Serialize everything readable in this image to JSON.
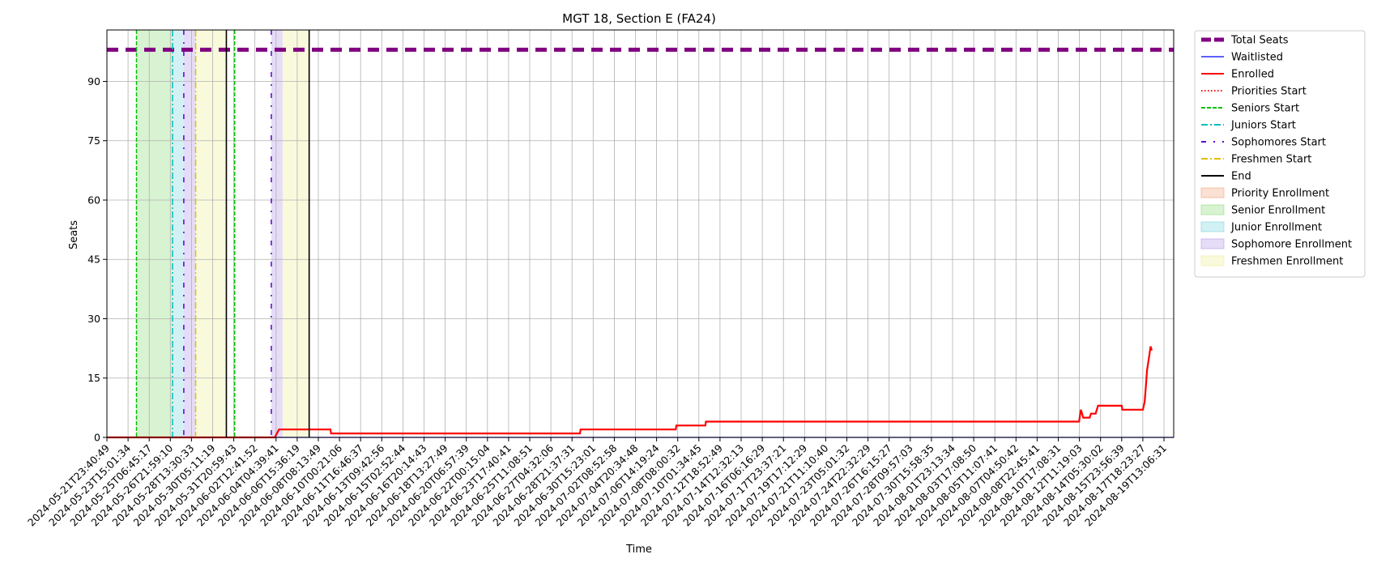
{
  "chart_data": {
    "type": "line",
    "title": "MGT 18, Section E (FA24)",
    "xlabel": "Time",
    "ylabel": "Seats",
    "ylim": [
      0,
      103
    ],
    "yticks": [
      0,
      15,
      30,
      45,
      60,
      75,
      90
    ],
    "grid": true,
    "legend_placement": "outside-right-top",
    "x_range_days": [
      0,
      90.2
    ],
    "x_ticks": [
      "2024-05-21T23:40:49",
      "2024-05-23T15:01:34",
      "2024-05-25T06:45:17",
      "2024-05-26T21:59:10",
      "2024-05-28T13:30:33",
      "2024-05-30T05:11:19",
      "2024-05-31T20:59:43",
      "2024-06-02T12:41:52",
      "2024-06-04T04:39:41",
      "2024-06-06T15:36:19",
      "2024-06-08T08:13:49",
      "2024-06-10T00:21:06",
      "2024-06-11T16:46:37",
      "2024-06-13T09:42:56",
      "2024-06-15T02:52:44",
      "2024-06-16T20:14:43",
      "2024-06-18T13:27:49",
      "2024-06-20T06:57:39",
      "2024-06-22T00:15:04",
      "2024-06-23T17:40:41",
      "2024-06-25T11:08:51",
      "2024-06-27T04:32:06",
      "2024-06-28T21:37:31",
      "2024-06-30T15:23:01",
      "2024-07-02T08:52:58",
      "2024-07-04T20:34:48",
      "2024-07-06T14:19:24",
      "2024-07-08T08:00:32",
      "2024-07-10T01:34:45",
      "2024-07-12T18:52:49",
      "2024-07-14T12:32:13",
      "2024-07-16T06:16:29",
      "2024-07-17T23:37:21",
      "2024-07-19T17:12:29",
      "2024-07-21T11:10:40",
      "2024-07-23T05:01:32",
      "2024-07-24T22:32:29",
      "2024-07-26T16:15:27",
      "2024-07-28T09:57:03",
      "2024-07-30T15:58:35",
      "2024-08-01T23:13:34",
      "2024-08-03T17:08:50",
      "2024-08-05T11:07:41",
      "2024-08-07T04:50:42",
      "2024-08-08T22:45:41",
      "2024-08-10T17:08:31",
      "2024-08-12T11:19:03",
      "2024-08-14T05:30:02",
      "2024-08-15T23:56:39",
      "2024-08-17T18:23:27",
      "2024-08-19T13:06:31"
    ],
    "series": [
      {
        "name": "Total Seats",
        "color": "#800080",
        "style": "dashed-thick",
        "points": [
          [
            0,
            98
          ],
          [
            90.2,
            98
          ]
        ]
      },
      {
        "name": "Waitlisted",
        "color": "#0000ff",
        "style": "solid-thin",
        "points": [
          [
            0,
            0
          ],
          [
            90.2,
            0
          ]
        ]
      },
      {
        "name": "Enrolled",
        "color": "#ff0000",
        "style": "solid",
        "points": [
          [
            0,
            0
          ],
          [
            14.2,
            0
          ],
          [
            14.55,
            2
          ],
          [
            18.9,
            2
          ],
          [
            18.95,
            1
          ],
          [
            40.0,
            1
          ],
          [
            40.05,
            2
          ],
          [
            48.1,
            2
          ],
          [
            48.15,
            3
          ],
          [
            50.6,
            3
          ],
          [
            50.65,
            4
          ],
          [
            82.2,
            4
          ],
          [
            82.35,
            7
          ],
          [
            82.55,
            5
          ],
          [
            83.1,
            5
          ],
          [
            83.2,
            6
          ],
          [
            83.6,
            6
          ],
          [
            83.8,
            8
          ],
          [
            85.8,
            8
          ],
          [
            85.85,
            7
          ],
          [
            87.6,
            7
          ],
          [
            87.75,
            9
          ],
          [
            87.85,
            13
          ],
          [
            87.95,
            17
          ],
          [
            88.05,
            19
          ],
          [
            88.15,
            21
          ],
          [
            88.25,
            23
          ],
          [
            88.35,
            22
          ]
        ]
      }
    ],
    "markers": [
      {
        "name": "Priorities Start",
        "color": "#ff0000",
        "style": "dotted",
        "x": []
      },
      {
        "name": "Seniors Start",
        "color": "#00c000",
        "style": "dashed",
        "x": [
          2.5,
          10.8
        ]
      },
      {
        "name": "Juniors Start",
        "color": "#00bfbf",
        "style": "dashdot",
        "x": [
          5.55
        ]
      },
      {
        "name": "Sophomores Start",
        "color": "#5a00d6",
        "style": "loose-dashdot",
        "x": [
          6.5,
          13.9
        ]
      },
      {
        "name": "Freshmen Start",
        "color": "#e0c000",
        "style": "dashdot",
        "x": [
          7.5
        ]
      },
      {
        "name": "End",
        "color": "#000000",
        "style": "solid",
        "x": [
          10.1,
          17.1
        ]
      }
    ],
    "spans": [
      {
        "name": "Priority Enrollment",
        "color": "#f4a582",
        "ranges": []
      },
      {
        "name": "Senior Enrollment",
        "color": "#8fdc7a",
        "ranges": [
          [
            2.5,
            5.55
          ]
        ]
      },
      {
        "name": "Junior Enrollment",
        "color": "#7fd6e0",
        "ranges": [
          [
            5.55,
            6.5
          ]
        ]
      },
      {
        "name": "Sophomore Enrollment",
        "color": "#b59be8",
        "ranges": [
          [
            6.5,
            7.5
          ],
          [
            13.9,
            14.85
          ]
        ]
      },
      {
        "name": "Freshmen Enrollment",
        "color": "#eeee9a",
        "ranges": [
          [
            7.5,
            10.1
          ],
          [
            14.85,
            17.1
          ]
        ]
      }
    ]
  }
}
